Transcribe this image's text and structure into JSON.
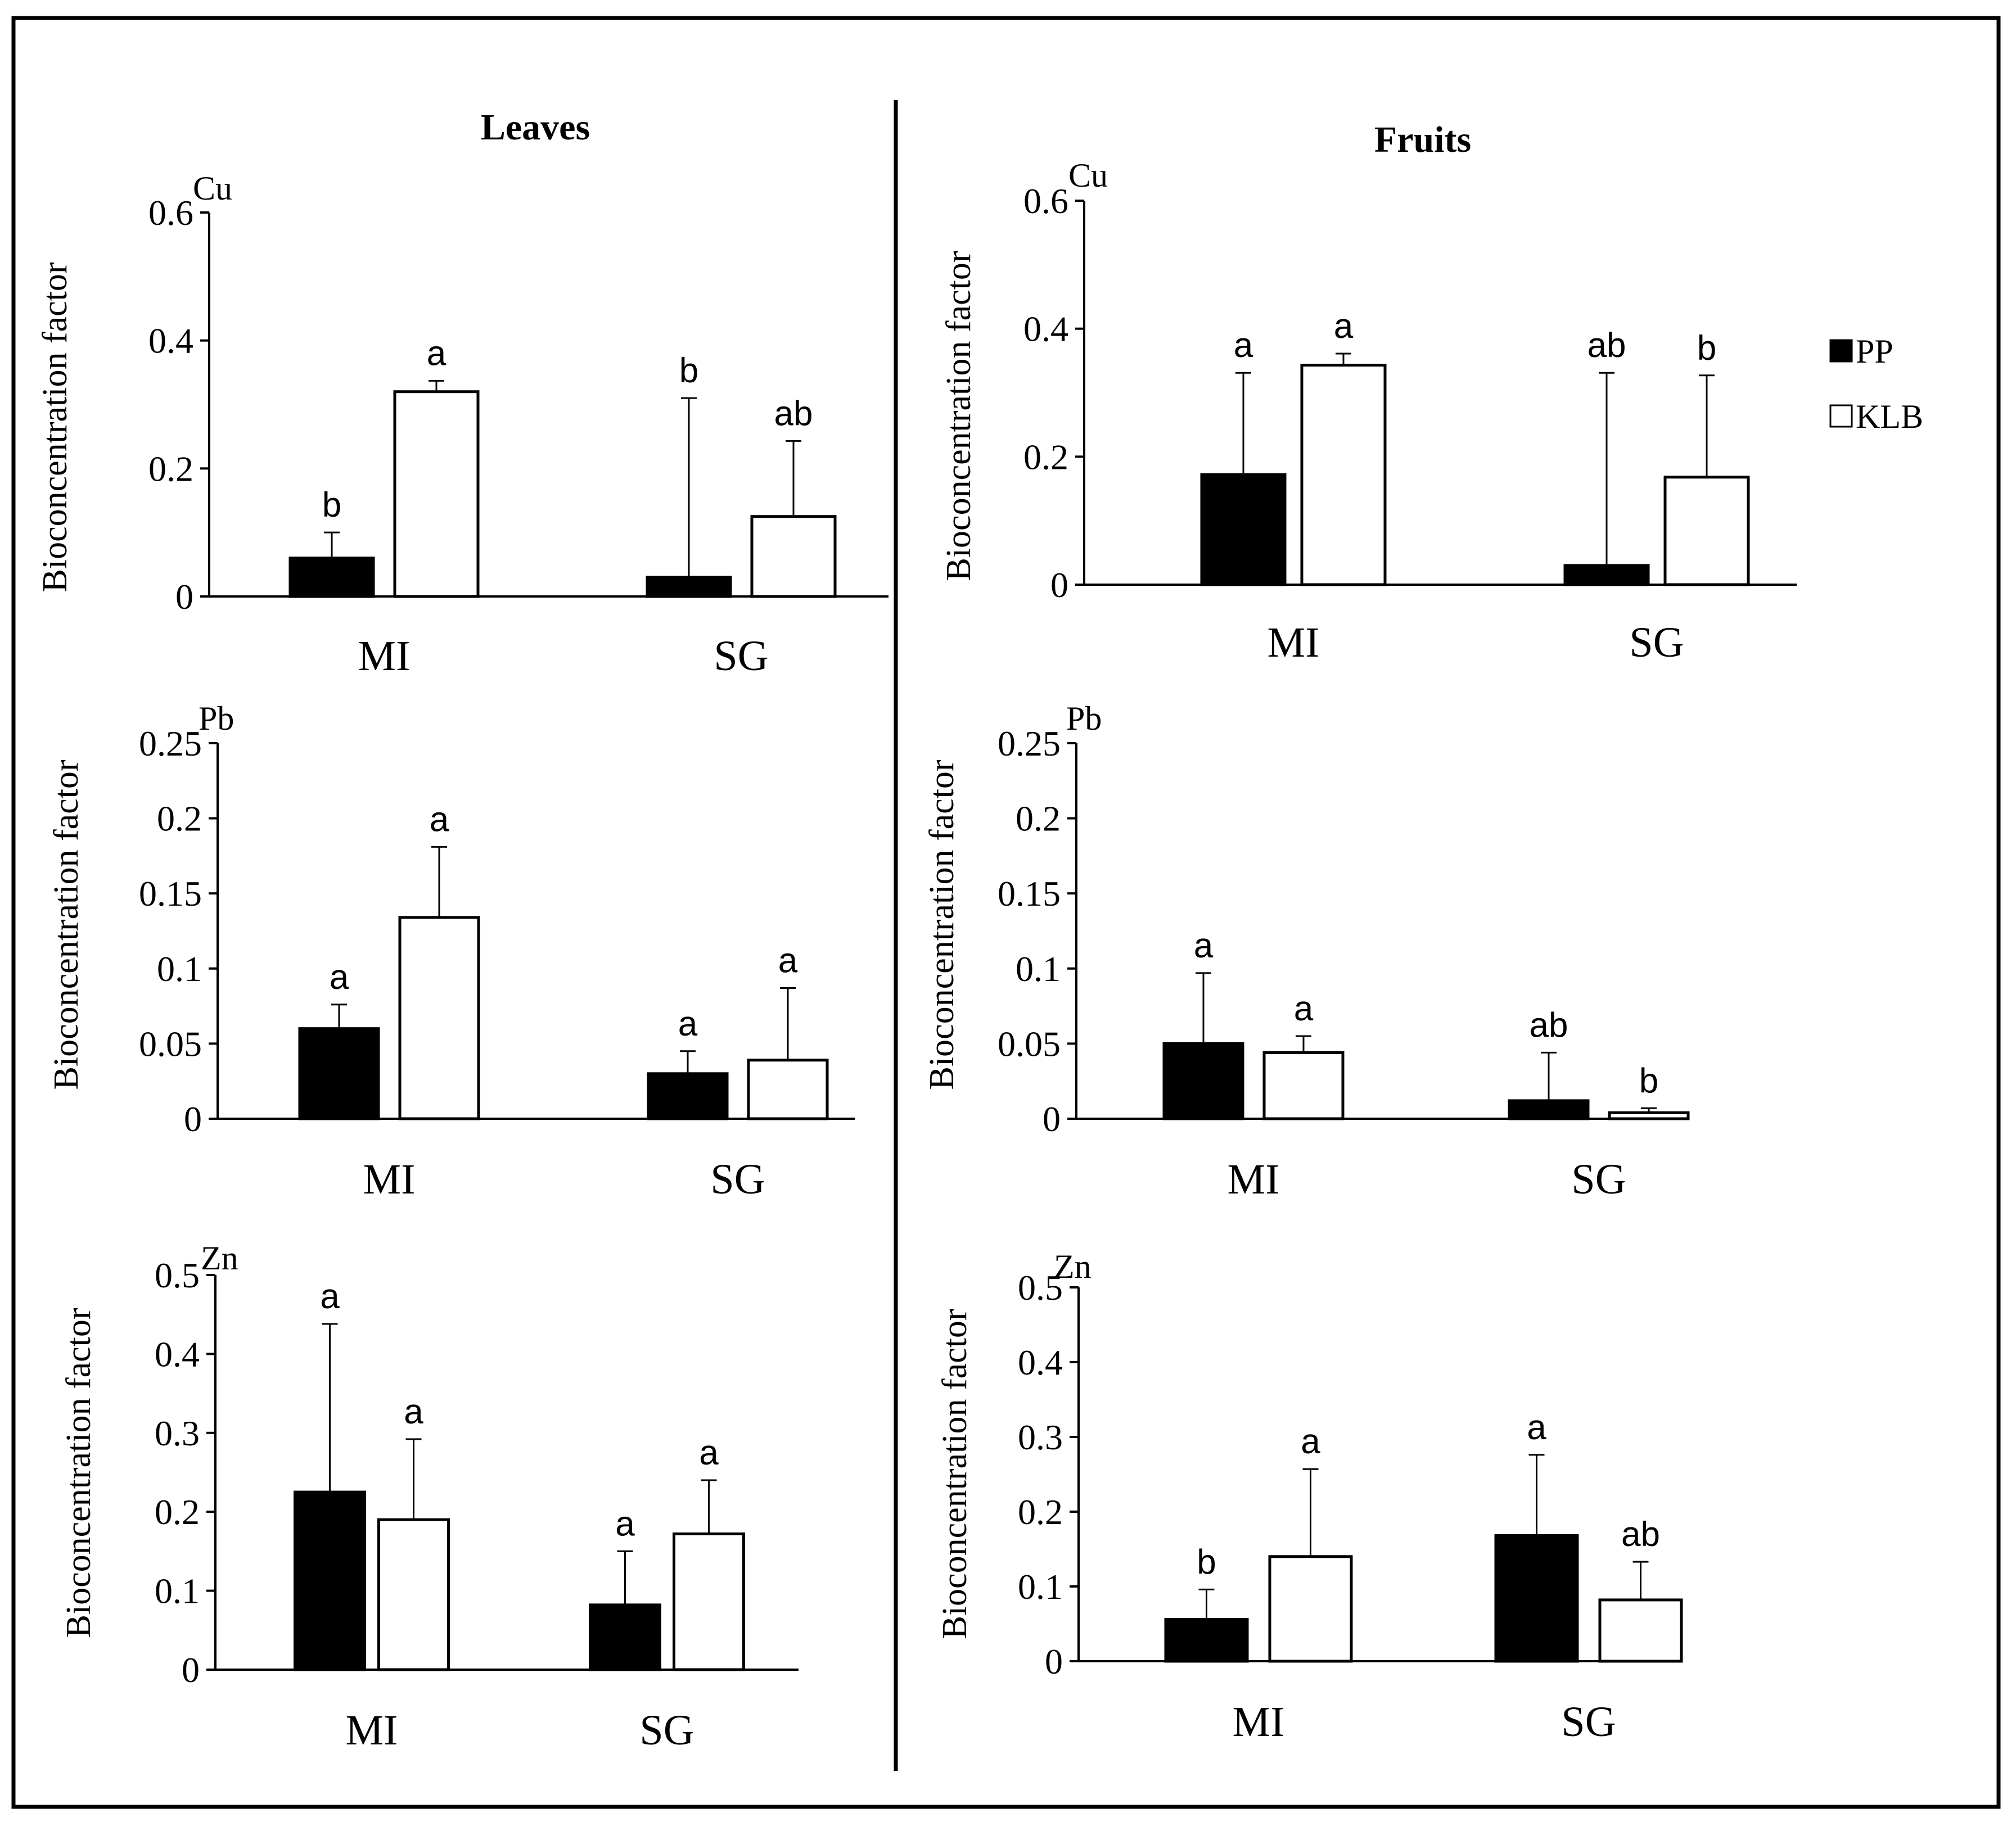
{
  "chart_data": [
    {
      "type": "bar",
      "column": "Leaves",
      "element": "Cu",
      "ylabel": "Bioconcentration factor",
      "ylim": [
        0,
        0.6
      ],
      "yticks": [
        "0",
        "0.2",
        "0.4",
        "0.6"
      ],
      "categories": [
        "MI",
        "SG"
      ],
      "series": [
        {
          "name": "PP",
          "values": [
            0.06,
            0.03
          ],
          "errors": [
            0.04,
            0.28
          ],
          "letters": [
            "b",
            "b"
          ]
        },
        {
          "name": "KLB",
          "values": [
            0.32,
            0.125
          ],
          "errors": [
            0.017,
            0.118
          ],
          "letters": [
            "a",
            "ab"
          ]
        }
      ]
    },
    {
      "type": "bar",
      "column": "Fruits",
      "element": "Cu",
      "ylabel": "Bioconcentration factor",
      "ylim": [
        0,
        0.6
      ],
      "yticks": [
        "0",
        "0.2",
        "0.4",
        "0.6"
      ],
      "categories": [
        "MI",
        "SG"
      ],
      "series": [
        {
          "name": "PP",
          "values": [
            0.172,
            0.03
          ],
          "errors": [
            0.159,
            0.301
          ],
          "letters": [
            "a",
            "ab"
          ]
        },
        {
          "name": "KLB",
          "values": [
            0.343,
            0.168
          ],
          "errors": [
            0.018,
            0.159
          ],
          "letters": [
            "a",
            "b"
          ]
        }
      ]
    },
    {
      "type": "bar",
      "column": "Leaves",
      "element": "Pb",
      "ylabel": "Bioconcentration factor",
      "ylim": [
        0,
        0.25
      ],
      "yticks": [
        "0",
        "0.05",
        "0.1",
        "0.15",
        "0.2",
        "0.25"
      ],
      "categories": [
        "MI",
        "SG"
      ],
      "series": [
        {
          "name": "PP",
          "values": [
            0.06,
            0.03
          ],
          "errors": [
            0.016,
            0.015
          ],
          "letters": [
            "a",
            "a"
          ]
        },
        {
          "name": "KLB",
          "values": [
            0.134,
            0.039
          ],
          "errors": [
            0.047,
            0.048
          ],
          "letters": [
            "a",
            "a"
          ]
        }
      ]
    },
    {
      "type": "bar",
      "column": "Fruits",
      "element": "Pb",
      "ylabel": "Bioconcentration factor",
      "ylim": [
        0,
        0.25
      ],
      "yticks": [
        "0",
        "0.05",
        "0.1",
        "0.15",
        "0.2",
        "0.25"
      ],
      "categories": [
        "MI",
        "SG"
      ],
      "series": [
        {
          "name": "PP",
          "values": [
            0.05,
            0.012
          ],
          "errors": [
            0.047,
            0.032
          ],
          "letters": [
            "a",
            "ab"
          ]
        },
        {
          "name": "KLB",
          "values": [
            0.044,
            0.004
          ],
          "errors": [
            0.011,
            0.003
          ],
          "letters": [
            "a",
            "b"
          ]
        }
      ]
    },
    {
      "type": "bar",
      "column": "Leaves",
      "element": "Zn",
      "ylabel": "Bioconcentration factor",
      "ylim": [
        0,
        0.5
      ],
      "yticks": [
        "0",
        "0.1",
        "0.2",
        "0.3",
        "0.4",
        "0.5"
      ],
      "categories": [
        "MI",
        "SG"
      ],
      "series": [
        {
          "name": "PP",
          "values": [
            0.225,
            0.082
          ],
          "errors": [
            0.213,
            0.068
          ],
          "letters": [
            "a",
            "a"
          ]
        },
        {
          "name": "KLB",
          "values": [
            0.19,
            0.172
          ],
          "errors": [
            0.102,
            0.068
          ],
          "letters": [
            "a",
            "a"
          ]
        }
      ]
    },
    {
      "type": "bar",
      "column": "Fruits",
      "element": "Zn",
      "ylabel": "Bioconcentration factor",
      "ylim": [
        0,
        0.5
      ],
      "yticks": [
        "0",
        "0.1",
        "0.2",
        "0.3",
        "0.4",
        "0.5"
      ],
      "categories": [
        "MI",
        "SG"
      ],
      "series": [
        {
          "name": "PP",
          "values": [
            0.056,
            0.168
          ],
          "errors": [
            0.04,
            0.108
          ],
          "letters": [
            "b",
            "a"
          ]
        },
        {
          "name": "KLB",
          "values": [
            0.14,
            0.082
          ],
          "errors": [
            0.117,
            0.051
          ],
          "letters": [
            "a",
            "ab"
          ]
        }
      ]
    }
  ],
  "titles": {
    "leaves": "Leaves",
    "fruits": "Fruits"
  },
  "legend": [
    {
      "label": "PP",
      "color": "#000000"
    },
    {
      "label": "KLB",
      "color": "#ffffff"
    }
  ]
}
